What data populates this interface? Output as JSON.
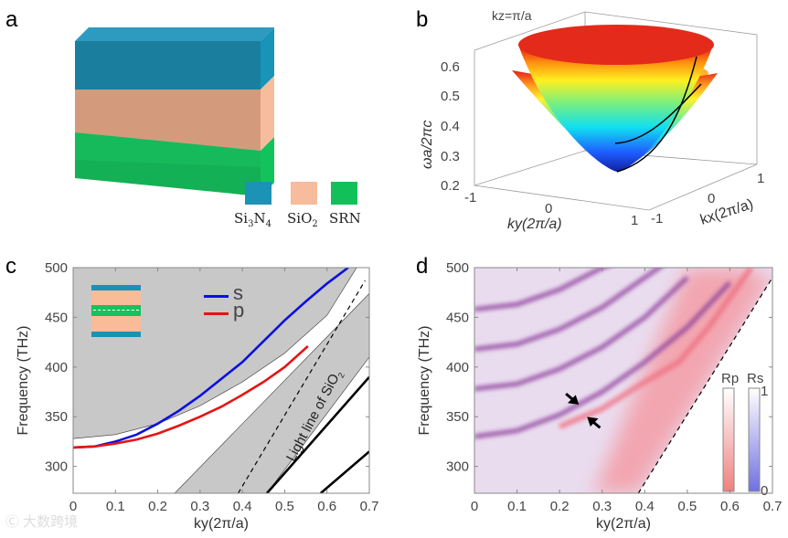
{
  "panels": {
    "a": "a",
    "b": "b",
    "c": "c",
    "d": "d"
  },
  "panel_a": {
    "legend": [
      {
        "label": "Si3N4",
        "base": "Si",
        "sub1": "3",
        "mid": "N",
        "sub2": "4",
        "color": "#1b93b5"
      },
      {
        "label": "SiO2",
        "base": "SiO",
        "sub1": "2",
        "mid": "",
        "sub2": "",
        "color": "#f6bc9c"
      },
      {
        "label": "SRN",
        "base": "SRN",
        "sub1": "",
        "mid": "",
        "sub2": "",
        "color": "#12c05a"
      }
    ]
  },
  "watermark": "大数跨境",
  "chart_data": [
    {
      "id": "b",
      "type": "surface3d",
      "title": "kz=π/a",
      "zlabel": "ωa/2πc",
      "xlabel": "ky(2π/a)",
      "ylabel": "kx(2π/a)",
      "zticks": [
        "0.2",
        "0.3",
        "0.4",
        "0.5",
        "0.6"
      ],
      "xticks": [
        "-1",
        "0",
        "1"
      ],
      "yticks": [
        "-1",
        "0",
        "1"
      ],
      "zlim": [
        0.2,
        0.65
      ],
      "xlim": [
        -1,
        1
      ],
      "ylim": [
        -1,
        1
      ]
    },
    {
      "id": "c",
      "type": "line",
      "xlabel": "ky(2π/a)",
      "ylabel": "Frequency (THz)",
      "xlim": [
        0,
        0.7
      ],
      "ylim": [
        273,
        500
      ],
      "xticks": [
        0,
        0.1,
        0.2,
        0.3,
        0.4,
        0.5,
        0.6,
        0.7
      ],
      "yticks": [
        300,
        350,
        400,
        450,
        500
      ],
      "annotation": "Light line of SiO2",
      "annotation_base": "Light line of SiO",
      "annotation_sub": "2",
      "legend": [
        {
          "name": "s",
          "color": "#0a10e0"
        },
        {
          "name": "p",
          "color": "#e51414"
        }
      ],
      "series": [
        {
          "name": "s",
          "color": "#0a10e0",
          "x": [
            0,
            0.05,
            0.1,
            0.15,
            0.2,
            0.25,
            0.3,
            0.35,
            0.4,
            0.45,
            0.5,
            0.55,
            0.6,
            0.65
          ],
          "y": [
            319,
            320,
            325,
            332,
            343,
            356,
            371,
            388,
            405,
            426,
            447,
            466,
            484,
            500
          ]
        },
        {
          "name": "p",
          "color": "#e51414",
          "x": [
            0,
            0.05,
            0.1,
            0.15,
            0.2,
            0.25,
            0.3,
            0.35,
            0.4,
            0.45,
            0.5,
            0.555
          ],
          "y": [
            319,
            320,
            323,
            327,
            333,
            341,
            350,
            360,
            372,
            385,
            400,
            421
          ]
        },
        {
          "name": "light-line",
          "style": "dashed",
          "color": "#000",
          "x": [
            0.39,
            0.69
          ],
          "y": [
            273,
            487
          ]
        },
        {
          "name": "guided-mode-1",
          "color": "#000",
          "x": [
            0.458,
            0.7
          ],
          "y": [
            273,
            390
          ]
        },
        {
          "name": "guided-mode-2",
          "color": "#000",
          "x": [
            0.585,
            0.7
          ],
          "y": [
            273,
            315
          ]
        }
      ],
      "regions": [
        {
          "name": "upper-continuum",
          "color": "#c8c8c8",
          "x": [
            0,
            0.1,
            0.2,
            0.3,
            0.4,
            0.5,
            0.6,
            0.67,
            0,
            0
          ],
          "y": [
            328,
            332,
            343,
            361,
            385,
            414,
            452,
            500,
            500,
            328
          ]
        },
        {
          "name": "lower-band",
          "color": "#c8c8c8",
          "x": [
            0.24,
            0.7,
            0.7,
            0.458
          ],
          "y": [
            273,
            474,
            410,
            273
          ]
        }
      ]
    },
    {
      "id": "d",
      "type": "heatmap",
      "xlabel": "ky(2π/a)",
      "ylabel": "Frequency (THz)",
      "xlim": [
        0,
        0.7
      ],
      "ylim": [
        273,
        500
      ],
      "xticks": [
        0,
        0.1,
        0.2,
        0.3,
        0.4,
        0.5,
        0.6,
        0.7
      ],
      "yticks": [
        300,
        350,
        400,
        450,
        500
      ],
      "colorbars": [
        {
          "label": "Rp",
          "min": "0",
          "max": "1",
          "color": "#f08080"
        },
        {
          "label": "Rs",
          "min": "0",
          "max": "1",
          "color": "#7070e0"
        }
      ],
      "bands": [
        {
          "name": "s-band-1",
          "color": "#8a3a9a",
          "x": [
            0,
            0.1,
            0.2,
            0.3,
            0.4,
            0.5,
            0.6
          ],
          "y": [
            330,
            336,
            352,
            375,
            405,
            440,
            485
          ]
        },
        {
          "name": "s-band-2",
          "color": "#8a3a9a",
          "x": [
            0,
            0.1,
            0.2,
            0.3,
            0.4,
            0.5
          ],
          "y": [
            378,
            383,
            398,
            420,
            450,
            490
          ]
        },
        {
          "name": "s-band-3",
          "color": "#8a3a9a",
          "x": [
            0,
            0.1,
            0.2,
            0.3,
            0.4,
            0.45
          ],
          "y": [
            418,
            423,
            438,
            460,
            490,
            505
          ]
        },
        {
          "name": "s-band-4",
          "color": "#8a3a9a",
          "x": [
            0,
            0.1,
            0.2,
            0.3,
            0.33
          ],
          "y": [
            458,
            463,
            478,
            500,
            505
          ]
        },
        {
          "name": "p-band",
          "color": "#f07080",
          "x": [
            0.2,
            0.3,
            0.4,
            0.48,
            0.55,
            0.65
          ],
          "y": [
            340,
            358,
            385,
            405,
            440,
            500
          ]
        }
      ],
      "light_line": {
        "x": [
          0.385,
          0.7
        ],
        "y": [
          273,
          490
        ]
      },
      "arrows": [
        {
          "x": 0.245,
          "y": 362
        },
        {
          "x": 0.265,
          "y": 350
        }
      ]
    }
  ]
}
